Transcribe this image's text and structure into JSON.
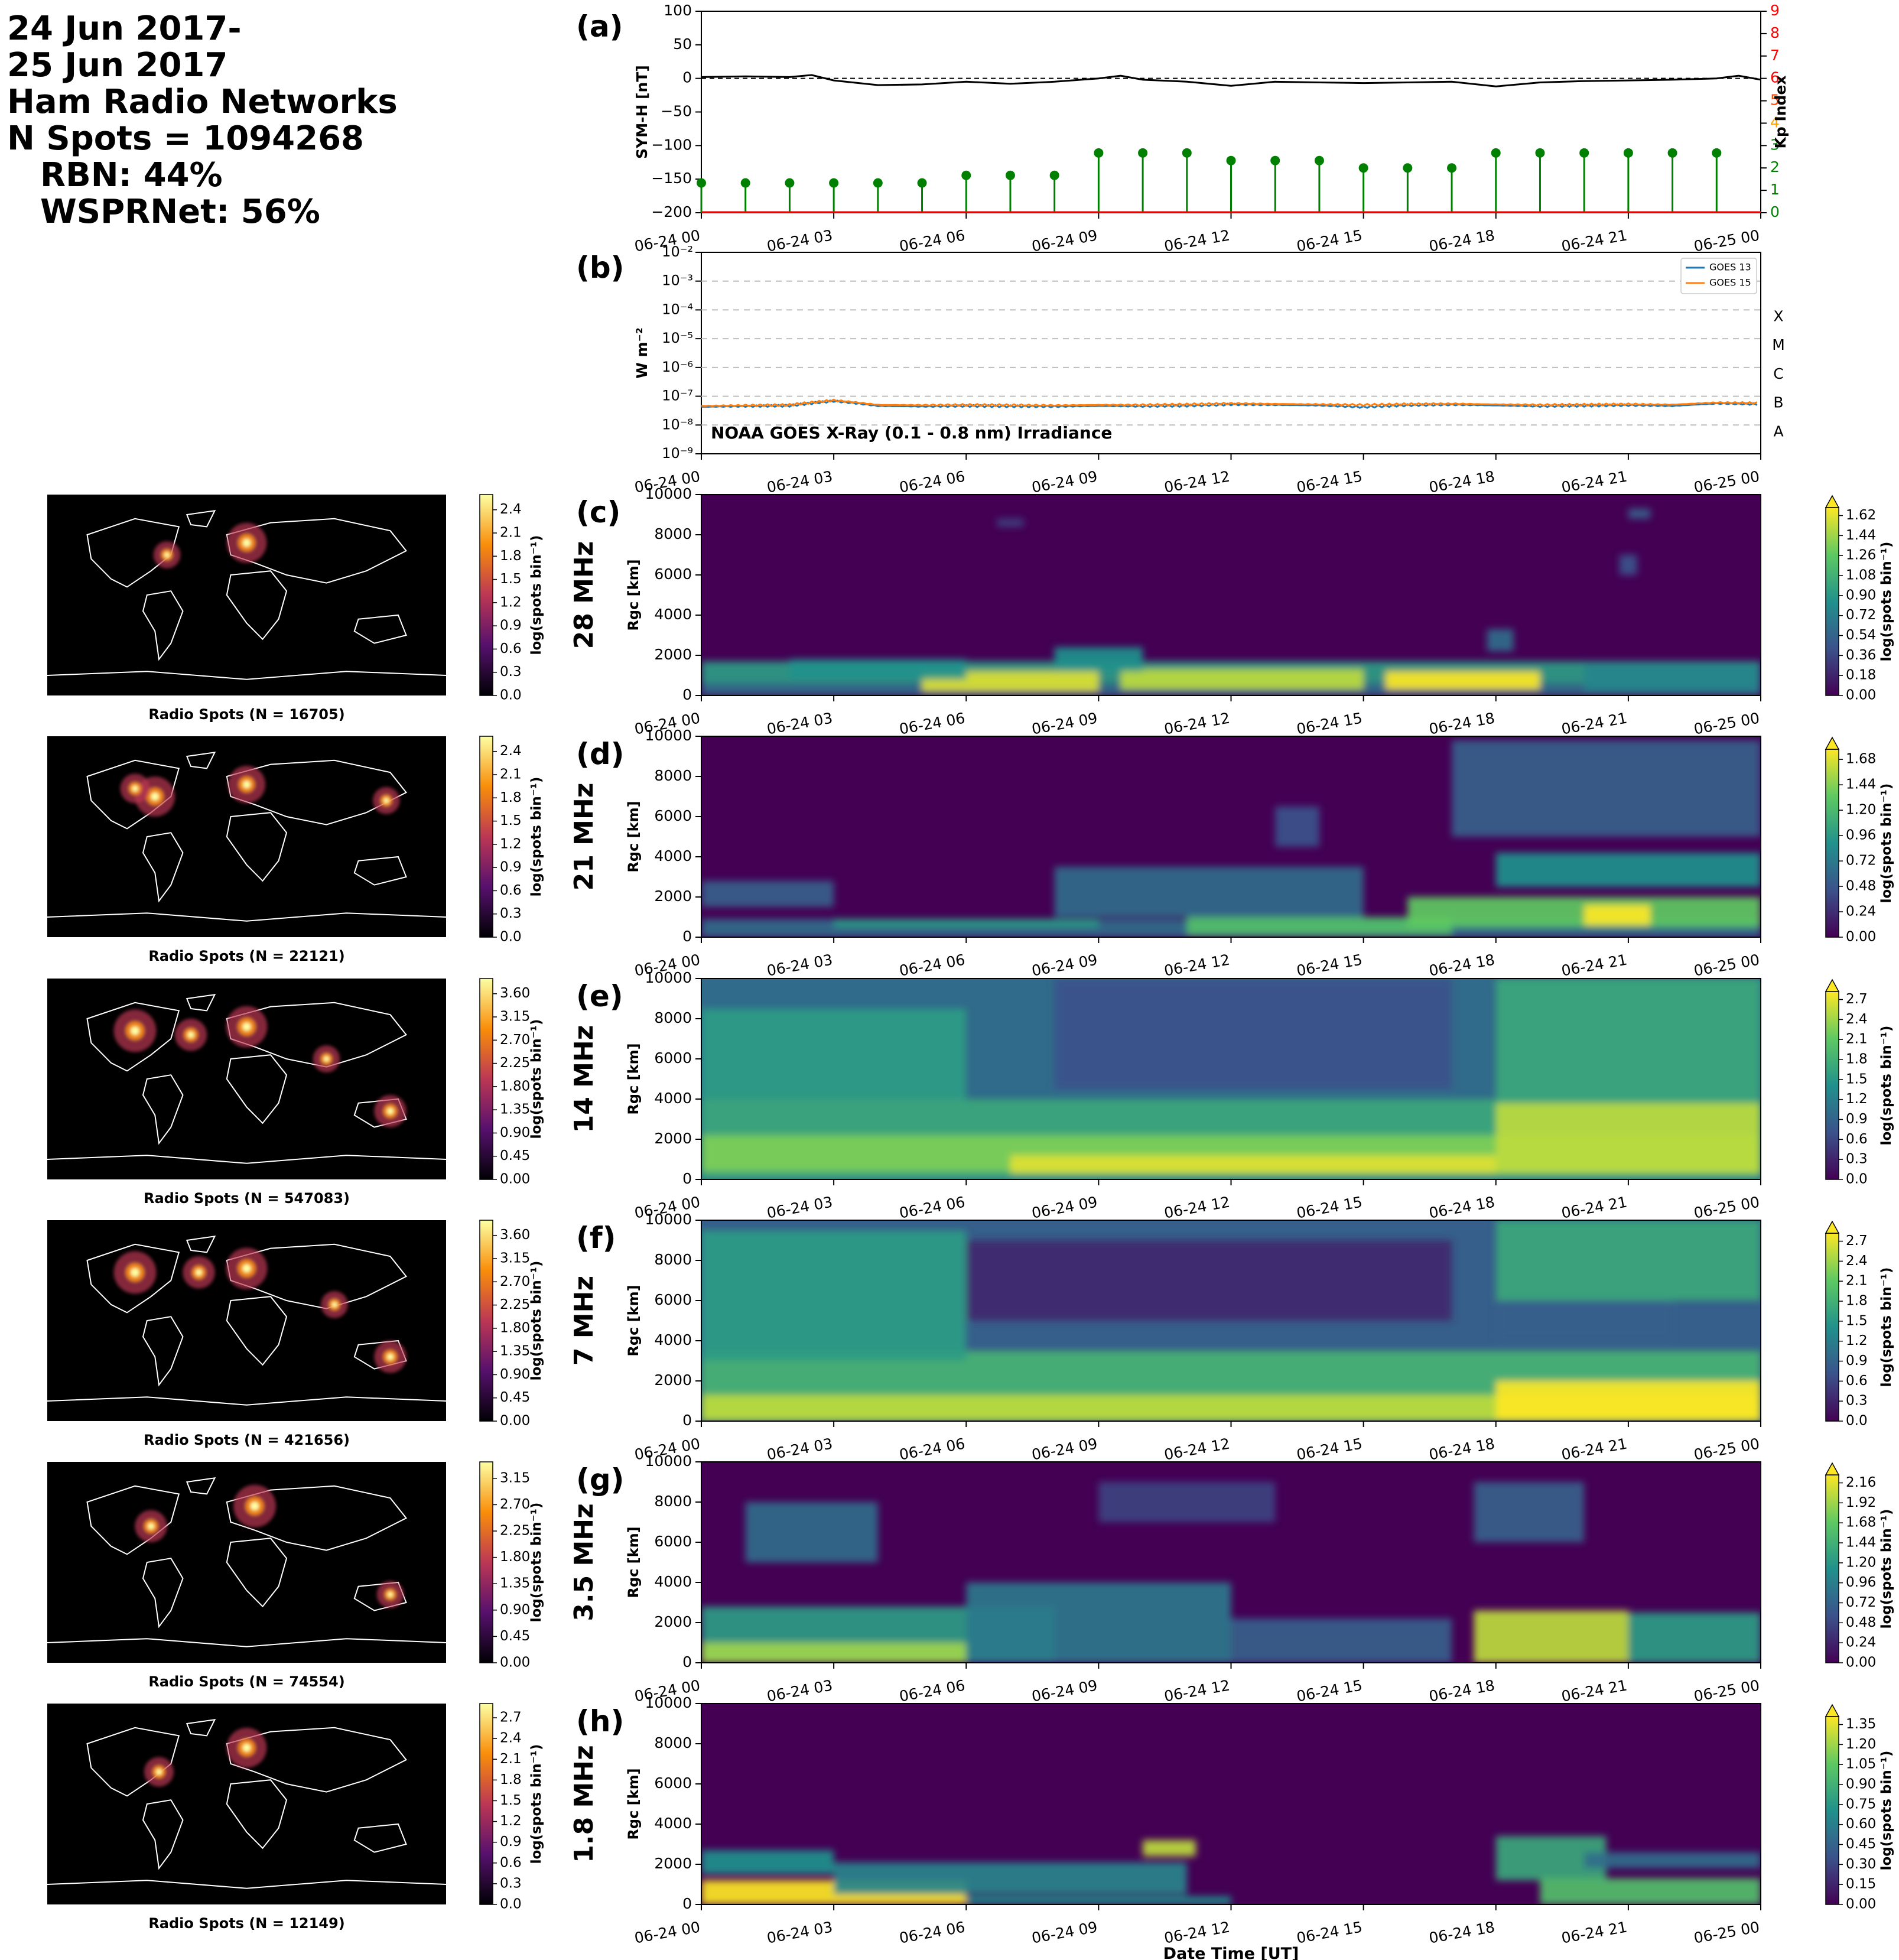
{
  "header": {
    "lines": [
      "24 Jun 2017-",
      "25 Jun 2017",
      "Ham Radio Networks",
      "N Spots = 1094268",
      "RBN: 44%",
      "WSPRNet: 56%"
    ]
  },
  "time_ticks": [
    "06-24 00",
    "06-24 03",
    "06-24 06",
    "06-24 09",
    "06-24 12",
    "06-24 15",
    "06-24 18",
    "06-24 21",
    "06-25 00"
  ],
  "xlabel_bottom": "Date Time [UT]",
  "colors": {
    "symh_line": "#000000",
    "kp_stem": "#008000",
    "kp_axis": "#ff0000",
    "goes13": "#1f77b4",
    "goes15": "#ff7f0e"
  },
  "chart_data": [
    {
      "type": "line",
      "panel": "(a)",
      "ylabel": "SYM-H [nT]",
      "ylim": [
        -200,
        100
      ],
      "yticks": [
        100,
        50,
        0,
        -50,
        -100,
        -150,
        -200
      ],
      "x_hours": [
        0,
        1,
        2,
        2.5,
        3,
        4,
        5,
        6,
        7,
        8,
        9,
        9.5,
        10,
        11,
        12,
        13,
        14,
        15,
        16,
        17,
        18,
        19,
        20,
        21,
        22,
        23,
        23.5,
        24
      ],
      "symh": [
        2,
        3,
        2,
        5,
        -3,
        -10,
        -9,
        -5,
        -8,
        -5,
        0,
        4,
        -2,
        -5,
        -11,
        -5,
        -6,
        -7,
        -6,
        -5,
        -12,
        -6,
        -4,
        -3,
        -2,
        0,
        4,
        -2
      ],
      "zero_line": "dashed",
      "secondary_axis": {
        "label": "Kp Index",
        "ylim": [
          0,
          9
        ],
        "ticks": [
          "0",
          "1",
          "2",
          "3",
          "4",
          "5",
          "6",
          "7",
          "8",
          "9"
        ],
        "tick_colors": [
          "#008000",
          "#008000",
          "#008000",
          "#008000",
          "#ffa500",
          "#ff4500",
          "#ff0000",
          "#ff0000",
          "#ff0000",
          "#ff0000"
        ]
      },
      "kp": {
        "x_hours": [
          0,
          1,
          2,
          3,
          4,
          5,
          6,
          7,
          8,
          9,
          10,
          11,
          12,
          13,
          14,
          15,
          16,
          17,
          18,
          19,
          20,
          21,
          22,
          23
        ],
        "values": [
          1.33,
          1.33,
          1.33,
          1.33,
          1.33,
          1.33,
          1.67,
          1.67,
          1.67,
          2.67,
          2.67,
          2.67,
          2.33,
          2.33,
          2.33,
          2.0,
          2.0,
          2.0,
          2.67,
          2.67,
          2.67,
          2.67,
          2.67,
          2.67
        ]
      }
    },
    {
      "type": "line",
      "panel": "(b)",
      "title": "NOAA GOES X-Ray (0.1 - 0.8 nm) Irradiance",
      "ylabel": "W m⁻²",
      "yscale": "log",
      "ylim": [
        1e-09,
        0.01
      ],
      "yticks": [
        "10⁻²",
        "10⁻³",
        "10⁻⁴",
        "10⁻⁵",
        "10⁻⁶",
        "10⁻⁷",
        "10⁻⁸",
        "10⁻⁹"
      ],
      "flare_classes": [
        "X",
        "M",
        "C",
        "B",
        "A"
      ],
      "series": [
        {
          "name": "GOES 13",
          "x_hours": [
            0,
            1,
            2,
            3,
            4,
            5,
            6,
            7,
            8,
            9,
            10,
            11,
            12,
            13,
            14,
            15,
            16,
            17,
            18,
            19,
            20,
            21,
            22,
            23,
            24
          ],
          "values": [
            4.3e-08,
            4.5e-08,
            4.7e-08,
            6.8e-08,
            4.6e-08,
            4.4e-08,
            4.6e-08,
            4.5e-08,
            4.4e-08,
            4.6e-08,
            4.5e-08,
            4.7e-08,
            5.2e-08,
            5e-08,
            4.8e-08,
            4.2e-08,
            4.9e-08,
            5.1e-08,
            4.8e-08,
            4.5e-08,
            4.7e-08,
            4.9e-08,
            4.6e-08,
            5.6e-08,
            5.3e-08
          ]
        },
        {
          "name": "GOES 15",
          "x_hours": [
            0,
            1,
            2,
            3,
            4,
            5,
            6,
            7,
            8,
            9,
            10,
            11,
            12,
            13,
            14,
            15,
            16,
            17,
            18,
            19,
            20,
            21,
            22,
            23,
            24
          ],
          "values": [
            4.6e-08,
            4.8e-08,
            5e-08,
            7.2e-08,
            5e-08,
            4.9e-08,
            5e-08,
            4.9e-08,
            4.8e-08,
            5e-08,
            5e-08,
            5.2e-08,
            5.6e-08,
            5.4e-08,
            5.2e-08,
            5e-08,
            5.3e-08,
            5.5e-08,
            5.2e-08,
            5e-08,
            5.1e-08,
            5.3e-08,
            5.1e-08,
            6e-08,
            5.8e-08
          ]
        }
      ]
    },
    {
      "type": "heatmap",
      "panel": "(c)",
      "band": "28 MHz",
      "ylabel": "Rgc [km]",
      "ylim": [
        0,
        10000
      ],
      "yticks": [
        0,
        2000,
        4000,
        6000,
        8000,
        10000
      ],
      "colorbar_label": "log(spots bin⁻¹)",
      "colorbar_ticks": [
        "0.00",
        "0.18",
        "0.36",
        "0.54",
        "0.72",
        "0.90",
        "1.08",
        "1.26",
        "1.44",
        "1.62"
      ],
      "map_title": "Radio Spots (N = 16705)",
      "map_colorbar_ticks": [
        "0.0",
        "0.3",
        "0.6",
        "0.9",
        "1.2",
        "1.5",
        "1.8",
        "2.1",
        "2.4"
      ]
    },
    {
      "type": "heatmap",
      "panel": "(d)",
      "band": "21 MHz",
      "ylabel": "Rgc [km]",
      "ylim": [
        0,
        10000
      ],
      "yticks": [
        0,
        2000,
        4000,
        6000,
        8000,
        10000
      ],
      "colorbar_label": "log(spots bin⁻¹)",
      "colorbar_ticks": [
        "0.00",
        "0.24",
        "0.48",
        "0.72",
        "0.96",
        "1.20",
        "1.44",
        "1.68"
      ],
      "map_title": "Radio Spots (N = 22121)",
      "map_colorbar_ticks": [
        "0.0",
        "0.3",
        "0.6",
        "0.9",
        "1.2",
        "1.5",
        "1.8",
        "2.1",
        "2.4"
      ]
    },
    {
      "type": "heatmap",
      "panel": "(e)",
      "band": "14 MHz",
      "ylabel": "Rgc [km]",
      "ylim": [
        0,
        10000
      ],
      "yticks": [
        0,
        2000,
        4000,
        6000,
        8000,
        10000
      ],
      "colorbar_label": "log(spots bin⁻¹)",
      "colorbar_ticks": [
        "0.0",
        "0.3",
        "0.6",
        "0.9",
        "1.2",
        "1.5",
        "1.8",
        "2.1",
        "2.4",
        "2.7"
      ],
      "map_title": "Radio Spots (N = 547083)",
      "map_colorbar_ticks": [
        "0.00",
        "0.45",
        "0.90",
        "1.35",
        "1.80",
        "2.25",
        "2.70",
        "3.15",
        "3.60"
      ]
    },
    {
      "type": "heatmap",
      "panel": "(f)",
      "band": "7 MHz",
      "ylabel": "Rgc [km]",
      "ylim": [
        0,
        10000
      ],
      "yticks": [
        0,
        2000,
        4000,
        6000,
        8000,
        10000
      ],
      "colorbar_label": "log(spots bin⁻¹)",
      "colorbar_ticks": [
        "0.0",
        "0.3",
        "0.6",
        "0.9",
        "1.2",
        "1.5",
        "1.8",
        "2.1",
        "2.4",
        "2.7"
      ],
      "map_title": "Radio Spots (N = 421656)",
      "map_colorbar_ticks": [
        "0.00",
        "0.45",
        "0.90",
        "1.35",
        "1.80",
        "2.25",
        "2.70",
        "3.15",
        "3.60"
      ]
    },
    {
      "type": "heatmap",
      "panel": "(g)",
      "band": "3.5 MHz",
      "ylabel": "Rgc [km]",
      "ylim": [
        0,
        10000
      ],
      "yticks": [
        0,
        2000,
        4000,
        6000,
        8000,
        10000
      ],
      "colorbar_label": "log(spots bin⁻¹)",
      "colorbar_ticks": [
        "0.00",
        "0.24",
        "0.48",
        "0.72",
        "0.96",
        "1.20",
        "1.44",
        "1.68",
        "1.92",
        "2.16"
      ],
      "map_title": "Radio Spots (N = 74554)",
      "map_colorbar_ticks": [
        "0.00",
        "0.45",
        "0.90",
        "1.35",
        "1.80",
        "2.25",
        "2.70",
        "3.15"
      ]
    },
    {
      "type": "heatmap",
      "panel": "(h)",
      "band": "1.8 MHz",
      "ylabel": "Rgc [km]",
      "ylim": [
        0,
        10000
      ],
      "yticks": [
        0,
        2000,
        4000,
        6000,
        8000,
        10000
      ],
      "colorbar_label": "log(spots bin⁻¹)",
      "colorbar_ticks": [
        "0.00",
        "0.15",
        "0.30",
        "0.45",
        "0.60",
        "0.75",
        "0.90",
        "1.05",
        "1.20",
        "1.35"
      ],
      "map_title": "Radio Spots (N = 12149)",
      "map_colorbar_ticks": [
        "0.0",
        "0.3",
        "0.6",
        "0.9",
        "1.2",
        "1.5",
        "1.8",
        "2.1",
        "2.4",
        "2.7"
      ]
    }
  ]
}
